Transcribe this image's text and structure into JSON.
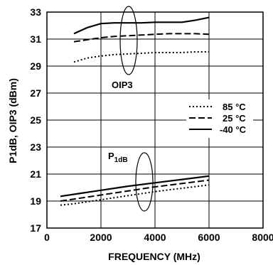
{
  "chart_data": {
    "type": "line",
    "xlabel": "FREQUENCY (MHz)",
    "ylabel": "P1dB, OIP3 (dBm)",
    "xlim": [
      0,
      8000
    ],
    "ylim": [
      17,
      33
    ],
    "x_ticks": [
      "0",
      "2000",
      "4000",
      "6000",
      "8000"
    ],
    "y_ticks": [
      "17",
      "19",
      "21",
      "23",
      "25",
      "27",
      "29",
      "31",
      "33"
    ],
    "grid": true,
    "legend": {
      "placement": "right",
      "entries": [
        "85 °C",
        "25 °C",
        "-40 °C"
      ]
    },
    "annotations": {
      "oip3": "OIP3",
      "p1db_main": "P",
      "p1db_sub": "1dB"
    },
    "series": [
      {
        "name": "85 °C",
        "group": "OIP3",
        "style": "dotted",
        "x": [
          1000,
          1500,
          2000,
          2500,
          3000,
          3500,
          4000,
          4500,
          5000,
          5500,
          6000
        ],
        "y": [
          29.3,
          29.6,
          29.75,
          29.85,
          29.9,
          29.95,
          30.0,
          30.0,
          30.0,
          30.05,
          30.05
        ]
      },
      {
        "name": "25 °C",
        "group": "OIP3",
        "style": "dashed",
        "x": [
          1000,
          1500,
          2000,
          2500,
          3000,
          3500,
          4000,
          4500,
          5000,
          5500,
          6000
        ],
        "y": [
          30.8,
          30.95,
          31.1,
          31.2,
          31.25,
          31.3,
          31.35,
          31.4,
          31.4,
          31.4,
          31.35
        ]
      },
      {
        "name": "-40 °C",
        "group": "OIP3",
        "style": "solid",
        "x": [
          1000,
          1500,
          2000,
          2500,
          3000,
          3500,
          4000,
          4500,
          5000,
          5500,
          6000
        ],
        "y": [
          31.4,
          31.85,
          32.15,
          32.2,
          32.2,
          32.2,
          32.25,
          32.25,
          32.25,
          32.4,
          32.6
        ]
      },
      {
        "name": "85 °C",
        "group": "P1dB",
        "style": "dotted",
        "x": [
          500,
          1000,
          2000,
          3000,
          4000,
          5000,
          6000
        ],
        "y": [
          18.7,
          18.8,
          19.1,
          19.4,
          19.7,
          19.95,
          20.2
        ]
      },
      {
        "name": "25 °C",
        "group": "P1dB",
        "style": "dashed",
        "x": [
          500,
          1000,
          2000,
          3000,
          4000,
          5000,
          6000
        ],
        "y": [
          19.0,
          19.15,
          19.45,
          19.75,
          20.05,
          20.3,
          20.55
        ]
      },
      {
        "name": "-40 °C",
        "group": "P1dB",
        "style": "solid",
        "x": [
          500,
          1000,
          2000,
          3000,
          4000,
          5000,
          6000
        ],
        "y": [
          19.35,
          19.5,
          19.8,
          20.1,
          20.35,
          20.6,
          20.85
        ]
      }
    ]
  }
}
